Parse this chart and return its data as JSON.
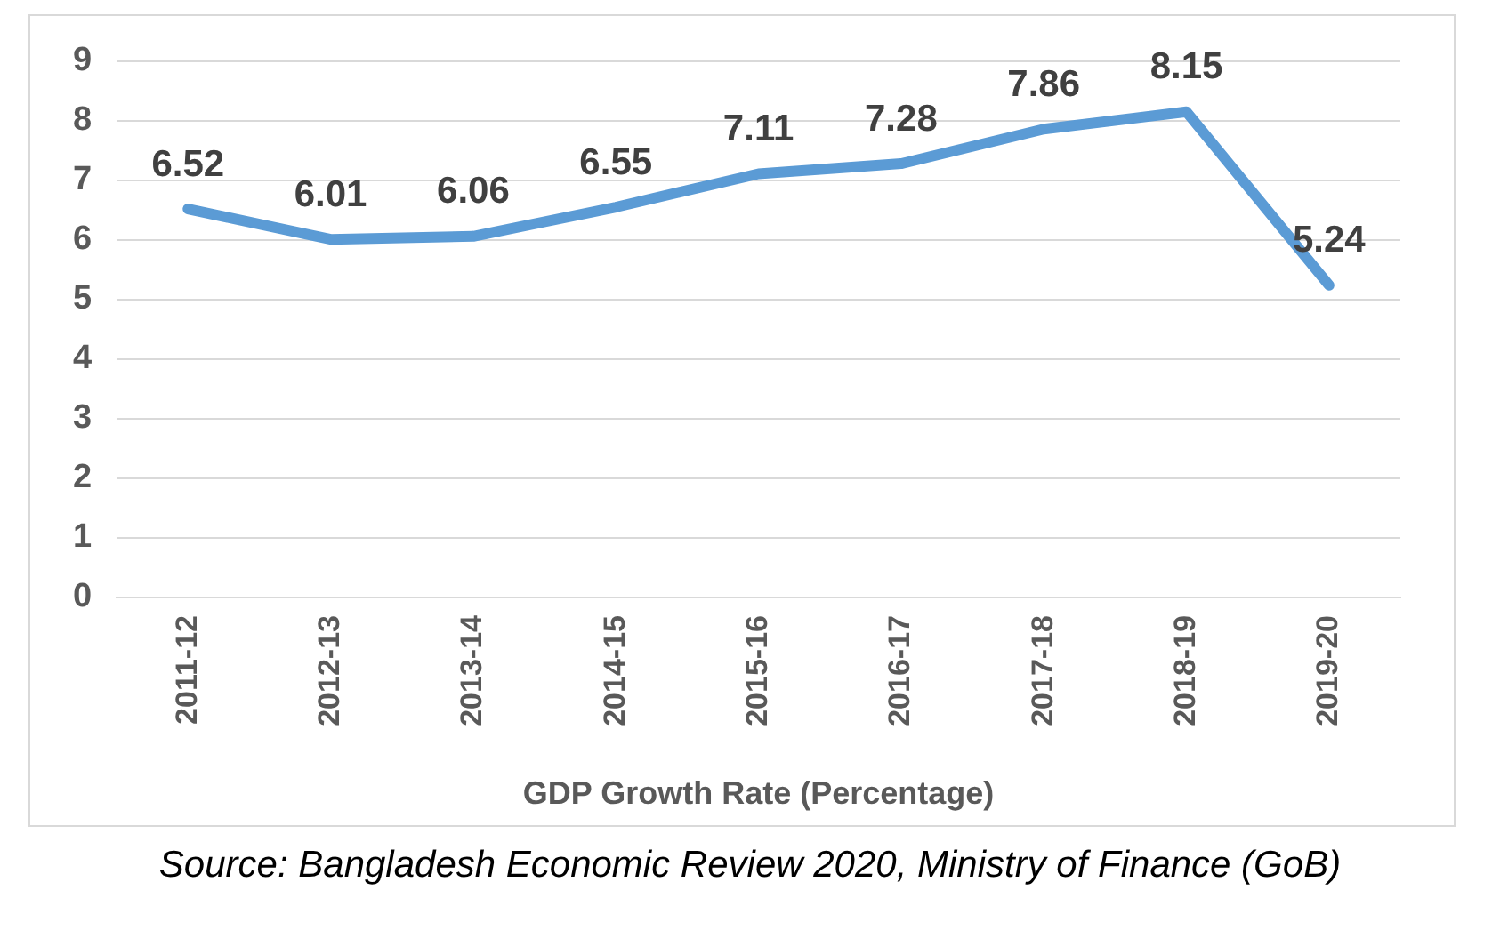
{
  "chart_data": {
    "type": "line",
    "xlabel": "GDP Growth Rate (Percentage)",
    "categories": [
      "2011-12",
      "2012-13",
      "2013-14",
      "2014-15",
      "2015-16",
      "2016-17",
      "2017-18",
      "2018-19",
      "2019-20"
    ],
    "series": [
      {
        "color": "#5b9bd5",
        "values": [
          6.52,
          6.01,
          6.06,
          6.55,
          7.11,
          7.28,
          7.86,
          8.15,
          5.24
        ]
      }
    ],
    "ylim": [
      0,
      9
    ],
    "yticks": [
      0,
      1,
      2,
      3,
      4,
      5,
      6,
      7,
      8,
      9
    ],
    "grid": "y",
    "data_labels": true,
    "marker": "none",
    "line_style": "solid",
    "legend": false,
    "annotations": [
      "Source: Bangladesh Economic Review 2020, Ministry of Finance (GoB)"
    ]
  }
}
